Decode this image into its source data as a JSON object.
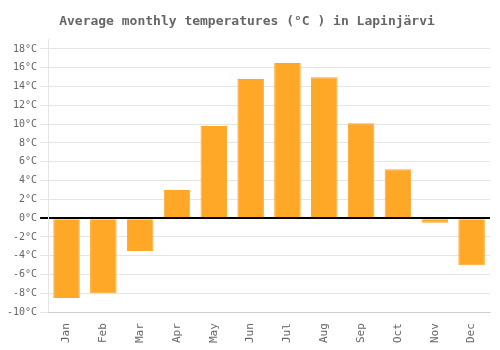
{
  "chart_data": {
    "type": "bar",
    "title": "Average monthly temperatures (°C ) in Lapinjärvi",
    "categories": [
      "Jan",
      "Feb",
      "Mar",
      "Apr",
      "May",
      "Jun",
      "Jul",
      "Aug",
      "Sep",
      "Oct",
      "Nov",
      "Dec"
    ],
    "values": [
      -8.5,
      -8.0,
      -3.5,
      3.0,
      9.8,
      14.8,
      16.5,
      15.0,
      10.1,
      5.2,
      -0.5,
      -5.0
    ],
    "color": "#FFA726",
    "ylim": [
      -10,
      19
    ],
    "yticks": [
      {
        "value": -10,
        "label": "-10°C"
      },
      {
        "value": -8,
        "label": "-8°C"
      },
      {
        "value": -6,
        "label": "-6°C"
      },
      {
        "value": -4,
        "label": "-4°C"
      },
      {
        "value": -2,
        "label": "-2°C"
      },
      {
        "value": 0,
        "label": "0°C"
      },
      {
        "value": 2,
        "label": "2°C"
      },
      {
        "value": 4,
        "label": "4°C"
      },
      {
        "value": 6,
        "label": "6°C"
      },
      {
        "value": 8,
        "label": "8°C"
      },
      {
        "value": 10,
        "label": "10°C"
      },
      {
        "value": 12,
        "label": "12°C"
      },
      {
        "value": 14,
        "label": "14°C"
      },
      {
        "value": 16,
        "label": "16°C"
      },
      {
        "value": 18,
        "label": "18°C"
      }
    ],
    "grid": true
  }
}
